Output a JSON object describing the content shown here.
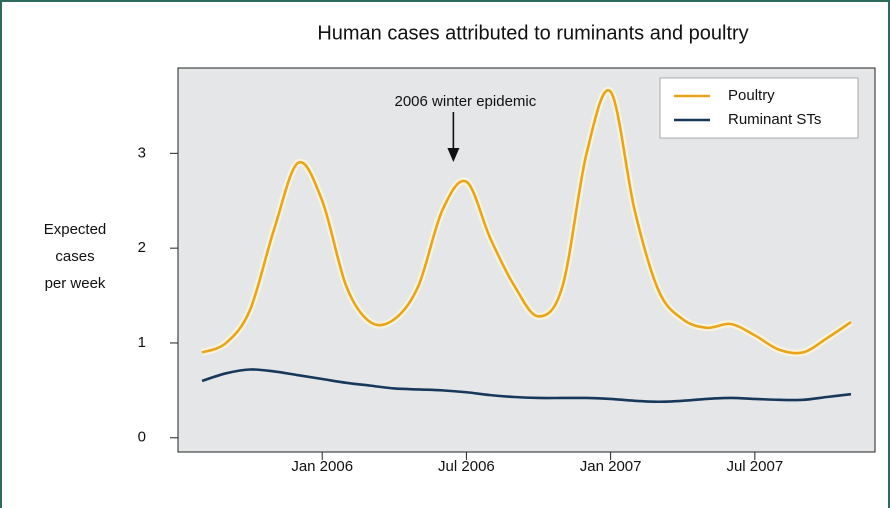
{
  "chart_data": {
    "type": "line",
    "title": "Human cases attributed to ruminants and poultry",
    "ylabel": [
      "Expected",
      "cases",
      "per week"
    ],
    "x": [
      "2005-08",
      "2005-09",
      "2005-10",
      "2005-11",
      "2005-12",
      "2006-01",
      "2006-02",
      "2006-03",
      "2006-04",
      "2006-05",
      "2006-06",
      "2006-07",
      "2006-08",
      "2006-09",
      "2006-10",
      "2006-11",
      "2006-12",
      "2007-01",
      "2007-02",
      "2007-03",
      "2007-04",
      "2007-05",
      "2007-06",
      "2007-07",
      "2007-08",
      "2007-09",
      "2007-10",
      "2007-11"
    ],
    "series": [
      {
        "name": "Poultry",
        "color": "#e8a51c",
        "values": [
          0.9,
          1.0,
          1.35,
          2.2,
          2.9,
          2.5,
          1.6,
          1.22,
          1.25,
          1.6,
          2.4,
          2.7,
          2.1,
          1.6,
          1.28,
          1.6,
          3.0,
          3.65,
          2.4,
          1.55,
          1.25,
          1.16,
          1.2,
          1.08,
          0.93,
          0.9,
          1.05,
          1.22
        ]
      },
      {
        "name": "Ruminant STs",
        "color": "#17385a",
        "values": [
          0.6,
          0.68,
          0.72,
          0.7,
          0.66,
          0.62,
          0.58,
          0.55,
          0.52,
          0.51,
          0.5,
          0.48,
          0.45,
          0.43,
          0.42,
          0.42,
          0.42,
          0.41,
          0.39,
          0.38,
          0.39,
          0.41,
          0.42,
          0.41,
          0.4,
          0.4,
          0.43,
          0.46
        ]
      }
    ],
    "xlim": [
      "2005-07",
      "2007-12"
    ],
    "xticks": [
      {
        "value": "2006-01",
        "label": "Jan 2006"
      },
      {
        "value": "2006-07",
        "label": "Jul 2006"
      },
      {
        "value": "2007-01",
        "label": "Jan 2007"
      },
      {
        "value": "2007-07",
        "label": "Jul 2007"
      }
    ],
    "ylim": [
      -0.15,
      3.9
    ],
    "yticks": [
      0,
      1,
      2,
      3
    ],
    "legend": "upper right",
    "annotations": [
      {
        "text": "2006 winter epidemic",
        "x": "2006-06"
      }
    ]
  }
}
